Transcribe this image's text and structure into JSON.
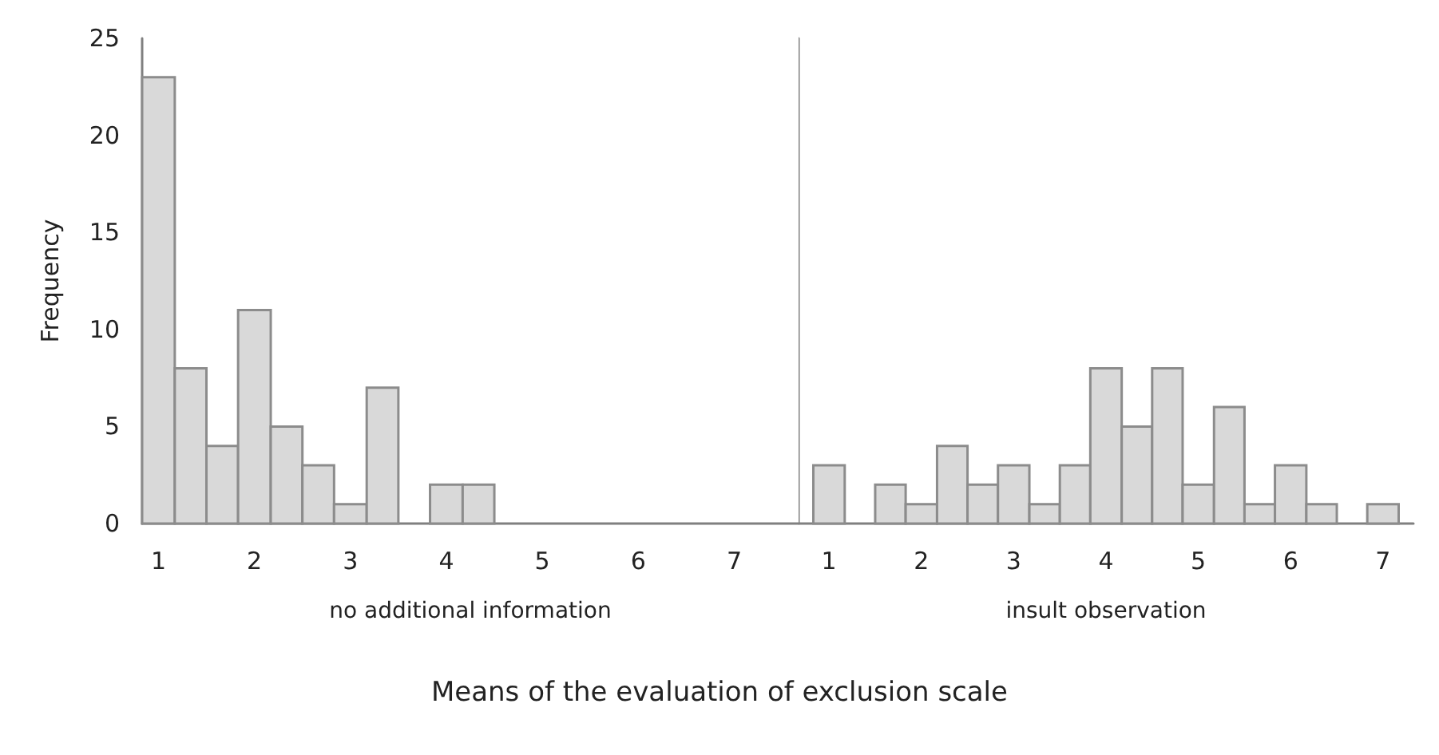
{
  "chart_data": [
    {
      "type": "histogram",
      "xlabel": "no additional information",
      "ylabel": "Frequency",
      "bins": [
        0.83,
        1.17,
        1.5,
        1.83,
        2.17,
        2.5,
        2.83,
        3.17,
        3.5,
        3.83,
        4.17,
        4.5
      ],
      "values": [
        23,
        8,
        4,
        11,
        5,
        3,
        1,
        7,
        0,
        2,
        2
      ],
      "color": "#d9d9d9",
      "xlim": [
        0.83,
        7.67
      ],
      "xticks": [
        1,
        2,
        3,
        4,
        5,
        6,
        7
      ],
      "ylim": [
        0,
        25
      ],
      "yticks": [
        0,
        5,
        10,
        15,
        20,
        25
      ],
      "grid": false,
      "annotations": [
        "Means of the evaluation of exclusion scale"
      ]
    },
    {
      "type": "histogram",
      "xlabel": "insult observation",
      "bins": [
        0.83,
        1.17,
        1.5,
        1.83,
        2.17,
        2.5,
        2.83,
        3.17,
        3.5,
        3.83,
        4.17,
        4.5,
        4.83,
        5.17,
        5.5,
        5.83,
        6.17,
        6.5,
        6.83,
        7.17
      ],
      "values": [
        3,
        0,
        2,
        1,
        4,
        2,
        3,
        1,
        3,
        8,
        5,
        8,
        2,
        6,
        1,
        3,
        1,
        0,
        1
      ],
      "color": "#d9d9d9",
      "xlim": [
        0.67,
        7.33
      ],
      "xticks": [
        1,
        2,
        3,
        4,
        5,
        6,
        7
      ],
      "ylim": [
        0,
        25
      ],
      "grid": false,
      "tick_labels": "x"
    }
  ]
}
